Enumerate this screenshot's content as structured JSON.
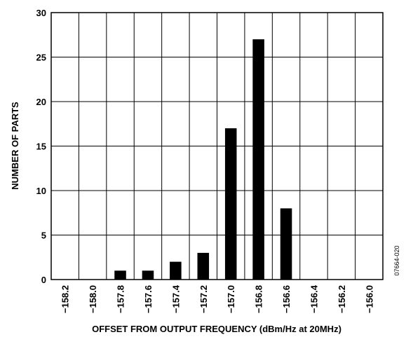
{
  "chart_data": {
    "type": "bar",
    "categories": [
      "−158.2",
      "−158.0",
      "−157.8",
      "−157.6",
      "−157.4",
      "−157.2",
      "−157.0",
      "−156.8",
      "−156.6",
      "−156.4",
      "−156.2",
      "−156.0"
    ],
    "values": [
      0,
      0,
      1,
      1,
      2,
      3,
      17,
      27,
      8,
      0,
      0,
      0
    ],
    "xlabel": "OFFSET FROM OUTPUT FREQUENCY (dBm/Hz at 20MHz)",
    "ylabel": "NUMBER OF PARTS",
    "ylim": [
      0,
      30
    ],
    "yticks": [
      "0",
      "5",
      "10",
      "15",
      "20",
      "25",
      "30"
    ],
    "grid": true,
    "bar_color": "#000000"
  },
  "figure_id": "07664-020"
}
